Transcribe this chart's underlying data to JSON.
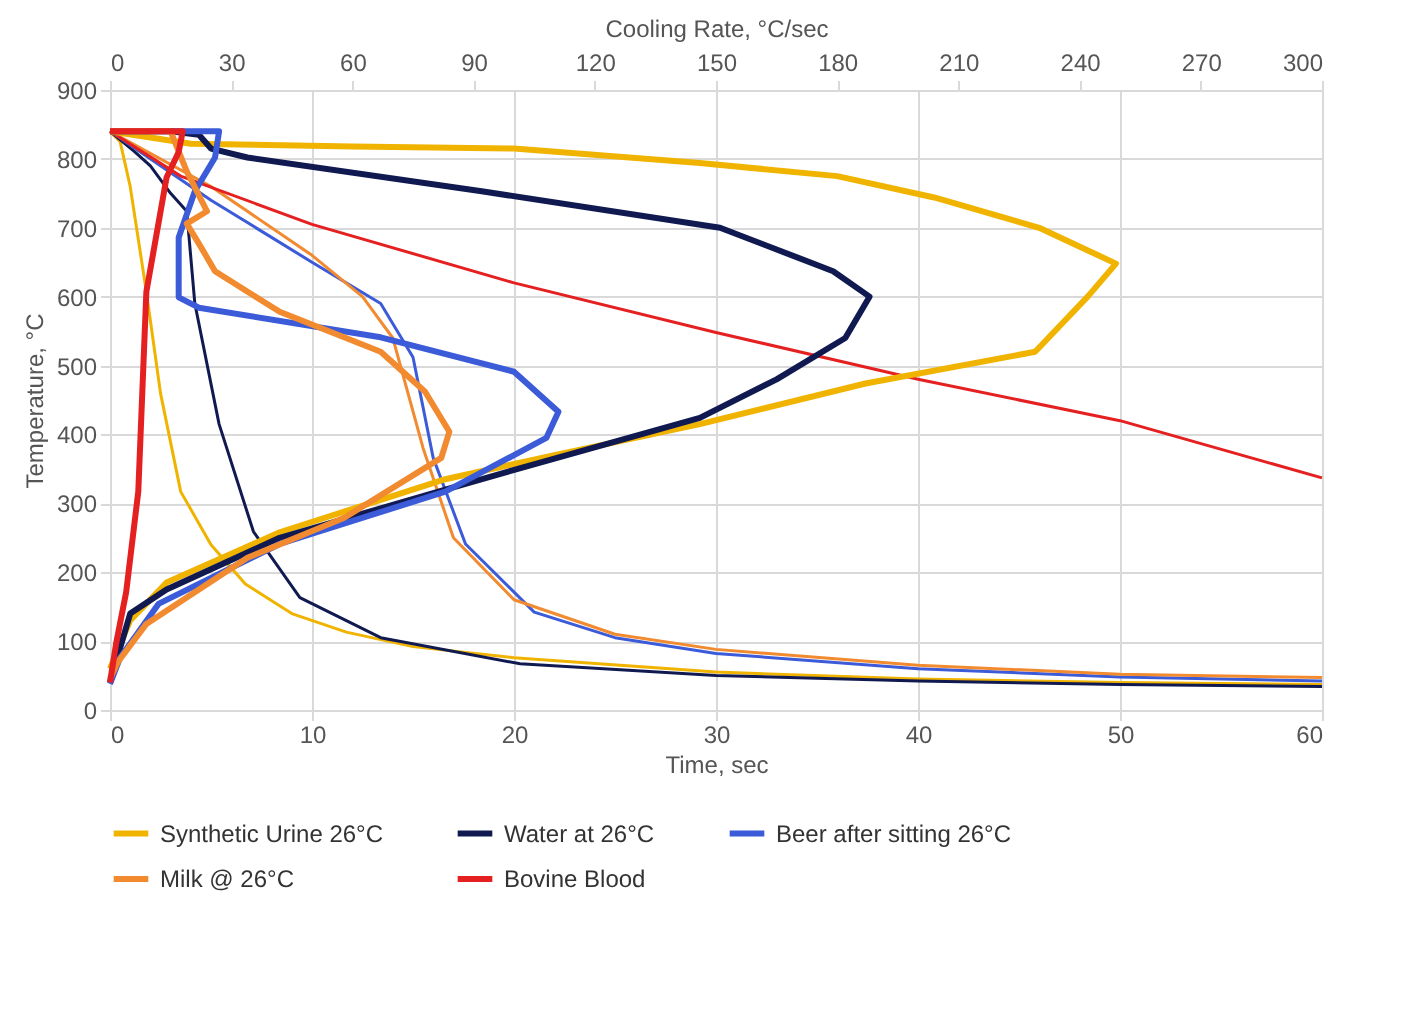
{
  "chart_data": {
    "type": "line",
    "xlabel": "Time, sec",
    "x2label": "Cooling Rate, °C/sec",
    "ylabel": "Temperature, °C",
    "xlim": [
      0,
      60
    ],
    "xticks": [
      0,
      10,
      20,
      30,
      40,
      50,
      60
    ],
    "x2lim": [
      0,
      300
    ],
    "x2ticks": [
      0,
      30,
      60,
      90,
      120,
      150,
      180,
      210,
      240,
      270,
      300
    ],
    "ylim": [
      0,
      900
    ],
    "yticks": [
      0,
      100,
      200,
      300,
      400,
      500,
      600,
      700,
      800,
      900
    ],
    "grid": true,
    "legend": "bottom",
    "line_style": "solid",
    "series": [
      {
        "color": "#f0b400",
        "x": [
          0,
          0.5,
          1,
          1.8,
          2.5,
          3.5,
          5,
          6.7,
          9,
          11.7,
          15,
          20,
          30,
          40,
          50,
          60
        ],
        "values": [
          840,
          825,
          760,
          607,
          460,
          317,
          240,
          183,
          140,
          113,
          92,
          76,
          55,
          45,
          40,
          37
        ]
      },
      {
        "color": "#101a50",
        "x": [
          0,
          1.2,
          2,
          3,
          3.8,
          4.2,
          5.4,
          7.1,
          9.4,
          13.4,
          20.3,
          30,
          40,
          50,
          60
        ],
        "values": [
          840,
          811,
          790,
          750,
          724,
          590,
          415,
          259,
          163,
          105,
          67,
          50,
          42,
          37,
          34
        ]
      },
      {
        "color": "#3b5bd8",
        "x": [
          0,
          5,
          10,
          13.4,
          15,
          16,
          17.6,
          21,
          25,
          30,
          40,
          50,
          60
        ],
        "values": [
          840,
          740,
          650,
          590,
          512,
          366,
          241,
          142,
          105,
          82,
          60,
          48,
          42
        ]
      },
      {
        "color": "#f28a30",
        "x": [
          0,
          5,
          10,
          12.5,
          14,
          15.5,
          17,
          20,
          25,
          30,
          40,
          50,
          60
        ],
        "values": [
          840,
          760,
          660,
          600,
          540,
          380,
          250,
          160,
          110,
          88,
          65,
          52,
          47
        ]
      },
      {
        "color": "#e52020",
        "x": [
          0,
          3.5,
          10,
          20,
          30,
          40,
          50,
          60
        ],
        "values": [
          840,
          775,
          705,
          620,
          548,
          480,
          420,
          337
        ]
      },
      {
        "name": "Synthetic Urine 26°C",
        "color": "#f0b400",
        "axis": "x2",
        "x": [
          0,
          20,
          60,
          100,
          146,
          180,
          204,
          230,
          249,
          242,
          229,
          187,
          146,
          110,
          83,
          42,
          14,
          5,
          0
        ],
        "values": [
          840,
          822,
          818,
          815,
          794,
          775,
          744,
          700,
          648,
          600,
          520,
          474,
          415,
          370,
          335,
          258,
          185,
          130,
          60
        ]
      },
      {
        "name": "Water at 26°C",
        "color": "#101a50",
        "axis": "x2",
        "x": [
          0,
          15,
          22,
          25,
          34,
          92,
          151,
          179,
          188,
          182,
          165,
          146,
          110,
          83,
          42,
          14,
          5,
          0
        ],
        "values": [
          840,
          840,
          835,
          815,
          802,
          753,
          700,
          637,
          600,
          540,
          480,
          424,
          365,
          320,
          250,
          175,
          140,
          40
        ]
      },
      {
        "name": "Beer after sitting 26°C",
        "color": "#3b5bd8",
        "axis": "x2",
        "x": [
          0,
          20,
          27,
          26,
          21,
          17,
          17,
          22,
          67,
          100,
          111,
          108,
          83,
          42,
          12,
          2.5,
          0
        ],
        "values": [
          840,
          840,
          840,
          802,
          753,
          686,
          599,
          584,
          541,
          491,
          433,
          395,
          317,
          241,
          154,
          76,
          38
        ]
      },
      {
        "name": "Milk @ 26°C",
        "color": "#f28a30",
        "axis": "x2",
        "x": [
          0,
          15,
          19,
          24,
          19,
          22,
          26,
          42,
          67,
          78,
          84,
          82,
          58,
          34,
          9,
          2,
          0
        ],
        "values": [
          840,
          840,
          782,
          724,
          706,
          677,
          637,
          578,
          520,
          462,
          404,
          366,
          279,
          221,
          125,
          70,
          45
        ]
      },
      {
        "name": "Bovine Blood",
        "color": "#e52020",
        "axis": "x2",
        "x": [
          0,
          18,
          17,
          14,
          9,
          7,
          4,
          1.5,
          0
        ],
        "values": [
          840,
          840,
          810,
          773,
          607,
          317,
          171,
          96,
          40
        ]
      }
    ]
  }
}
